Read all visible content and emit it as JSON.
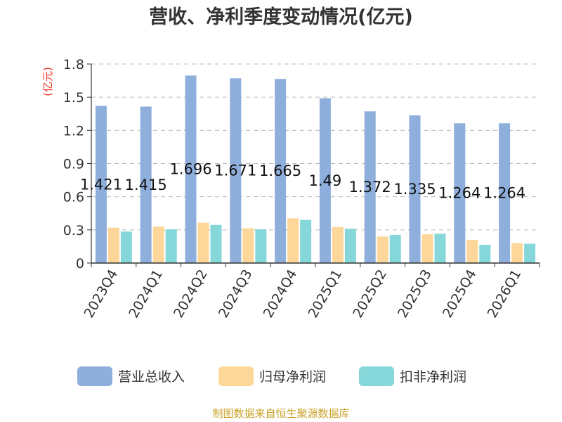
{
  "chart_data": {
    "type": "bar",
    "title": "营收、净利季度变动情况(亿元)",
    "ylabel": "(亿元)",
    "ylim": [
      0,
      1.8
    ],
    "yticks": [
      "0",
      "0.3",
      "0.6",
      "0.9",
      "1.2",
      "1.5",
      "1.8"
    ],
    "grid": true,
    "legend_position": "bottom",
    "categories": [
      "2023Q4",
      "2024Q1",
      "2024Q2",
      "2024Q3",
      "2024Q4",
      "2025Q1",
      "2025Q2",
      "2025Q3",
      "2025Q4",
      "2026Q1"
    ],
    "series": [
      {
        "name": "营业总收入",
        "color": "#8eaedc",
        "values": [
          1.421,
          1.415,
          1.696,
          1.671,
          1.665,
          1.49,
          1.372,
          1.335,
          1.264,
          1.264
        ]
      },
      {
        "name": "归母净利润",
        "color": "#fdd79a",
        "values": [
          0.32,
          0.33,
          0.365,
          0.315,
          0.405,
          0.325,
          0.24,
          0.26,
          0.21,
          0.18
        ]
      },
      {
        "name": "扣非净利润",
        "color": "#86d7d9",
        "values": [
          0.285,
          0.305,
          0.345,
          0.305,
          0.39,
          0.31,
          0.255,
          0.265,
          0.165,
          0.175
        ]
      }
    ],
    "data_labels": [
      "1.421",
      "1.415",
      "1.696",
      "1.671",
      "1.665",
      "1.49",
      "1.372",
      "1.335",
      "1.264",
      "1.264"
    ]
  },
  "footer": {
    "source": "制图数据来自恒生聚源数据库"
  }
}
